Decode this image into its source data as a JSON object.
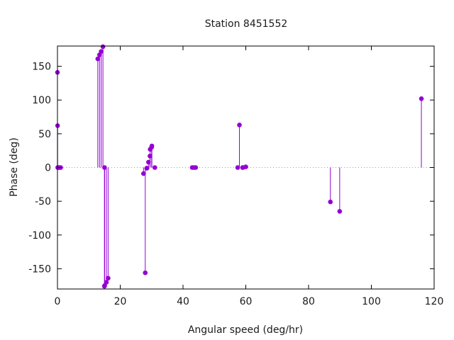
{
  "chart_data": {
    "type": "scatter",
    "style": "impulses-with-points",
    "title": "Station 8451552",
    "xlabel": "Angular speed (deg/hr)",
    "ylabel": "Phase (deg)",
    "xlim": [
      0,
      120
    ],
    "ylim": [
      -180,
      180
    ],
    "xticks": [
      "0",
      "20",
      "40",
      "60",
      "80",
      "100",
      "120"
    ],
    "yticks": [
      "-150",
      "-100",
      "-50",
      "0",
      "50",
      "100",
      "150"
    ],
    "xtick_values": [
      0,
      20,
      40,
      60,
      80,
      100,
      120
    ],
    "ytick_values": [
      -150,
      -100,
      -50,
      0,
      50,
      100,
      150
    ],
    "zero_line": true,
    "grid": false,
    "color": "#9400d3",
    "series": [
      {
        "points": [
          {
            "x": 0.0,
            "y": 141
          },
          {
            "x": 0.04,
            "y": 62
          },
          {
            "x": 0.08,
            "y": 0
          },
          {
            "x": 0.5,
            "y": 0
          },
          {
            "x": 0.55,
            "y": 0
          },
          {
            "x": 1.02,
            "y": 0
          },
          {
            "x": 12.85,
            "y": 161
          },
          {
            "x": 13.4,
            "y": 167
          },
          {
            "x": 13.94,
            "y": 172
          },
          {
            "x": 14.49,
            "y": 179
          },
          {
            "x": 14.96,
            "y": -176
          },
          {
            "x": 15.0,
            "y": 0
          },
          {
            "x": 15.04,
            "y": -175
          },
          {
            "x": 15.59,
            "y": -170
          },
          {
            "x": 16.14,
            "y": -164
          },
          {
            "x": 27.42,
            "y": -9
          },
          {
            "x": 27.97,
            "y": -156
          },
          {
            "x": 28.44,
            "y": -1
          },
          {
            "x": 28.51,
            "y": -1
          },
          {
            "x": 29.0,
            "y": 8
          },
          {
            "x": 29.46,
            "y": 17
          },
          {
            "x": 29.53,
            "y": 27
          },
          {
            "x": 30.0,
            "y": 30
          },
          {
            "x": 30.08,
            "y": 32
          },
          {
            "x": 31.02,
            "y": 0
          },
          {
            "x": 42.93,
            "y": 0
          },
          {
            "x": 43.48,
            "y": 0
          },
          {
            "x": 44.03,
            "y": 0
          },
          {
            "x": 57.42,
            "y": 0
          },
          {
            "x": 57.97,
            "y": 63
          },
          {
            "x": 58.98,
            "y": 0
          },
          {
            "x": 59.07,
            "y": 0
          },
          {
            "x": 60.0,
            "y": 1
          },
          {
            "x": 86.95,
            "y": -51
          },
          {
            "x": 89.91,
            "y": -65
          },
          {
            "x": 115.94,
            "y": 102
          }
        ]
      }
    ]
  }
}
